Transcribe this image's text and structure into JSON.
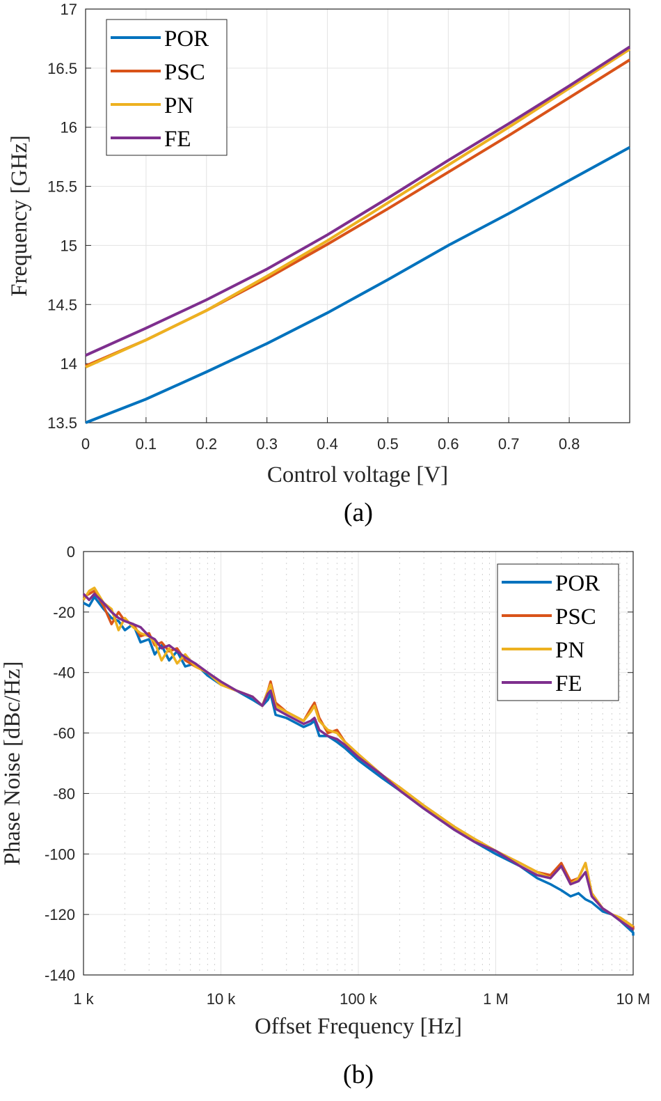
{
  "chart_data": [
    {
      "type": "line",
      "caption": "(a)",
      "xlabel": "Control voltage [V]",
      "ylabel": "Frequency [GHz]",
      "xlim": [
        0,
        0.9
      ],
      "ylim": [
        13.5,
        17
      ],
      "xticks": [
        "0",
        "0.1",
        "0.2",
        "0.3",
        "0.4",
        "0.5",
        "0.6",
        "0.7",
        "0.8"
      ],
      "yticks": [
        "13.5",
        "14",
        "14.5",
        "15",
        "15.5",
        "16",
        "16.5",
        "17"
      ],
      "grid": true,
      "legend_position": "top-left",
      "x": [
        0,
        0.1,
        0.2,
        0.3,
        0.4,
        0.5,
        0.6,
        0.7,
        0.8,
        0.9
      ],
      "series": [
        {
          "name": "POR",
          "color": "#0072BD",
          "values": [
            13.5,
            13.7,
            13.93,
            14.17,
            14.43,
            14.71,
            15.0,
            15.27,
            15.55,
            15.83
          ]
        },
        {
          "name": "PSC",
          "color": "#D95319",
          "values": [
            13.98,
            14.2,
            14.45,
            14.72,
            15.01,
            15.31,
            15.62,
            15.93,
            16.25,
            16.57
          ]
        },
        {
          "name": "PN",
          "color": "#EDB120",
          "values": [
            13.97,
            14.2,
            14.45,
            14.74,
            15.04,
            15.36,
            15.68,
            16.0,
            16.33,
            16.66
          ]
        },
        {
          "name": "FE",
          "color": "#7E2F8E",
          "values": [
            14.07,
            14.3,
            14.54,
            14.8,
            15.09,
            15.4,
            15.72,
            16.03,
            16.35,
            16.68
          ]
        }
      ]
    },
    {
      "type": "line",
      "caption": "(b)",
      "xlabel": "Offset Frequency [Hz]",
      "ylabel": "Phase Noise [dBc/Hz]",
      "xscale": "log",
      "xlim": [
        1000,
        10500000
      ],
      "ylim": [
        -140,
        0
      ],
      "xticks": [
        {
          "value": 1000,
          "label": "1 k"
        },
        {
          "value": 10000,
          "label": "10 k"
        },
        {
          "value": 100000,
          "label": "100 k"
        },
        {
          "value": 1000000,
          "label": "1 M"
        },
        {
          "value": 10000000,
          "label": "10 M"
        }
      ],
      "yticks": [
        "-140",
        "-120",
        "-100",
        "-80",
        "-60",
        "-40",
        "-20",
        "0"
      ],
      "grid": true,
      "minor_grid": true,
      "legend_position": "top-right",
      "series": [
        {
          "name": "POR",
          "color": "#0072BD",
          "points": [
            [
              1000,
              -17
            ],
            [
              1100,
              -18
            ],
            [
              1200,
              -15
            ],
            [
              1400,
              -19
            ],
            [
              1600,
              -22
            ],
            [
              1800,
              -23
            ],
            [
              2000,
              -26
            ],
            [
              2300,
              -24
            ],
            [
              2600,
              -30
            ],
            [
              3000,
              -29
            ],
            [
              3300,
              -34
            ],
            [
              3700,
              -31
            ],
            [
              4200,
              -36
            ],
            [
              4800,
              -33
            ],
            [
              5500,
              -38
            ],
            [
              6500,
              -37
            ],
            [
              8000,
              -41
            ],
            [
              10000,
              -44
            ],
            [
              13000,
              -46
            ],
            [
              17000,
              -49
            ],
            [
              20000,
              -51
            ],
            [
              22000,
              -49
            ],
            [
              23000,
              -47
            ],
            [
              25000,
              -54
            ],
            [
              30000,
              -55
            ],
            [
              40000,
              -58
            ],
            [
              45000,
              -57
            ],
            [
              48000,
              -56
            ],
            [
              52000,
              -61
            ],
            [
              60000,
              -61
            ],
            [
              70000,
              -63
            ],
            [
              80000,
              -65
            ],
            [
              100000,
              -69
            ],
            [
              150000,
              -75
            ],
            [
              200000,
              -79
            ],
            [
              300000,
              -85
            ],
            [
              500000,
              -92
            ],
            [
              700000,
              -96
            ],
            [
              1000000,
              -100
            ],
            [
              1500000,
              -104
            ],
            [
              2000000,
              -108
            ],
            [
              2500000,
              -110
            ],
            [
              3000000,
              -112
            ],
            [
              3500000,
              -114
            ],
            [
              4000000,
              -113
            ],
            [
              4500000,
              -115
            ],
            [
              5000000,
              -116
            ],
            [
              6000000,
              -119
            ],
            [
              7000000,
              -120
            ],
            [
              8000000,
              -122
            ],
            [
              10000000,
              -126
            ],
            [
              10500000,
              -127
            ]
          ]
        },
        {
          "name": "PSC",
          "color": "#D95319",
          "points": [
            [
              1000,
              -15
            ],
            [
              1100,
              -14
            ],
            [
              1200,
              -13
            ],
            [
              1400,
              -18
            ],
            [
              1600,
              -24
            ],
            [
              1800,
              -20
            ],
            [
              2000,
              -23
            ],
            [
              2300,
              -24
            ],
            [
              2600,
              -28
            ],
            [
              3000,
              -27
            ],
            [
              3300,
              -31
            ],
            [
              3700,
              -30
            ],
            [
              4200,
              -33
            ],
            [
              4800,
              -32
            ],
            [
              5500,
              -36
            ],
            [
              6500,
              -38
            ],
            [
              8000,
              -40
            ],
            [
              10000,
              -44
            ],
            [
              13000,
              -46
            ],
            [
              17000,
              -48
            ],
            [
              20000,
              -51
            ],
            [
              22000,
              -46
            ],
            [
              23000,
              -43
            ],
            [
              25000,
              -50
            ],
            [
              30000,
              -53
            ],
            [
              40000,
              -56
            ],
            [
              45000,
              -52
            ],
            [
              48000,
              -50
            ],
            [
              52000,
              -55
            ],
            [
              60000,
              -60
            ],
            [
              70000,
              -59
            ],
            [
              80000,
              -63
            ],
            [
              100000,
              -67
            ],
            [
              150000,
              -74
            ],
            [
              200000,
              -78
            ],
            [
              300000,
              -84
            ],
            [
              500000,
              -91
            ],
            [
              700000,
              -95
            ],
            [
              1000000,
              -99
            ],
            [
              1500000,
              -103
            ],
            [
              2000000,
              -106
            ],
            [
              2500000,
              -107
            ],
            [
              3000000,
              -103
            ],
            [
              3500000,
              -109
            ],
            [
              4000000,
              -108
            ],
            [
              4500000,
              -103
            ],
            [
              5000000,
              -113
            ],
            [
              6000000,
              -118
            ],
            [
              7000000,
              -120
            ],
            [
              8000000,
              -121
            ],
            [
              10000000,
              -124
            ],
            [
              10500000,
              -125
            ]
          ]
        },
        {
          "name": "PN",
          "color": "#EDB120",
          "points": [
            [
              1000,
              -16
            ],
            [
              1100,
              -13
            ],
            [
              1200,
              -12
            ],
            [
              1400,
              -17
            ],
            [
              1600,
              -19
            ],
            [
              1800,
              -26
            ],
            [
              2000,
              -22
            ],
            [
              2300,
              -25
            ],
            [
              2600,
              -27
            ],
            [
              3000,
              -28
            ],
            [
              3300,
              -30
            ],
            [
              3700,
              -36
            ],
            [
              4200,
              -32
            ],
            [
              4800,
              -37
            ],
            [
              5500,
              -34
            ],
            [
              6500,
              -38
            ],
            [
              8000,
              -40
            ],
            [
              10000,
              -44
            ],
            [
              13000,
              -46
            ],
            [
              17000,
              -48
            ],
            [
              20000,
              -51
            ],
            [
              22000,
              -46
            ],
            [
              23000,
              -44
            ],
            [
              25000,
              -51
            ],
            [
              30000,
              -53
            ],
            [
              40000,
              -56
            ],
            [
              45000,
              -53
            ],
            [
              48000,
              -51
            ],
            [
              52000,
              -56
            ],
            [
              60000,
              -59
            ],
            [
              70000,
              -60
            ],
            [
              80000,
              -63
            ],
            [
              100000,
              -67
            ],
            [
              150000,
              -74
            ],
            [
              200000,
              -78
            ],
            [
              300000,
              -84
            ],
            [
              500000,
              -91
            ],
            [
              700000,
              -95
            ],
            [
              1000000,
              -99
            ],
            [
              1500000,
              -103
            ],
            [
              2000000,
              -106
            ],
            [
              2500000,
              -108
            ],
            [
              3000000,
              -104
            ],
            [
              3500000,
              -110
            ],
            [
              4000000,
              -108
            ],
            [
              4500000,
              -103
            ],
            [
              5000000,
              -113
            ],
            [
              6000000,
              -118
            ],
            [
              7000000,
              -120
            ],
            [
              8000000,
              -121
            ],
            [
              10000000,
              -124
            ],
            [
              10500000,
              -124
            ]
          ]
        },
        {
          "name": "FE",
          "color": "#7E2F8E",
          "points": [
            [
              1000,
              -14
            ],
            [
              1100,
              -16
            ],
            [
              1200,
              -14
            ],
            [
              1400,
              -17
            ],
            [
              1600,
              -20
            ],
            [
              1800,
              -22
            ],
            [
              2000,
              -23
            ],
            [
              2300,
              -24
            ],
            [
              2600,
              -25
            ],
            [
              3000,
              -28
            ],
            [
              3300,
              -29
            ],
            [
              3700,
              -32
            ],
            [
              4200,
              -31
            ],
            [
              4800,
              -33
            ],
            [
              5500,
              -35
            ],
            [
              6500,
              -37
            ],
            [
              8000,
              -40
            ],
            [
              10000,
              -43
            ],
            [
              13000,
              -46
            ],
            [
              17000,
              -48
            ],
            [
              20000,
              -51
            ],
            [
              22000,
              -47
            ],
            [
              23000,
              -46
            ],
            [
              25000,
              -52
            ],
            [
              30000,
              -54
            ],
            [
              40000,
              -57
            ],
            [
              45000,
              -56
            ],
            [
              48000,
              -55
            ],
            [
              52000,
              -59
            ],
            [
              60000,
              -61
            ],
            [
              70000,
              -62
            ],
            [
              80000,
              -64
            ],
            [
              100000,
              -68
            ],
            [
              150000,
              -74
            ],
            [
              200000,
              -79
            ],
            [
              300000,
              -85
            ],
            [
              500000,
              -92
            ],
            [
              700000,
              -96
            ],
            [
              1000000,
              -99
            ],
            [
              1500000,
              -104
            ],
            [
              2000000,
              -107
            ],
            [
              2500000,
              -108
            ],
            [
              3000000,
              -104
            ],
            [
              3500000,
              -110
            ],
            [
              4000000,
              -109
            ],
            [
              4500000,
              -106
            ],
            [
              5000000,
              -114
            ],
            [
              6000000,
              -118
            ],
            [
              7000000,
              -120
            ],
            [
              8000000,
              -122
            ],
            [
              10000000,
              -125
            ],
            [
              10500000,
              -125
            ]
          ]
        }
      ]
    }
  ]
}
